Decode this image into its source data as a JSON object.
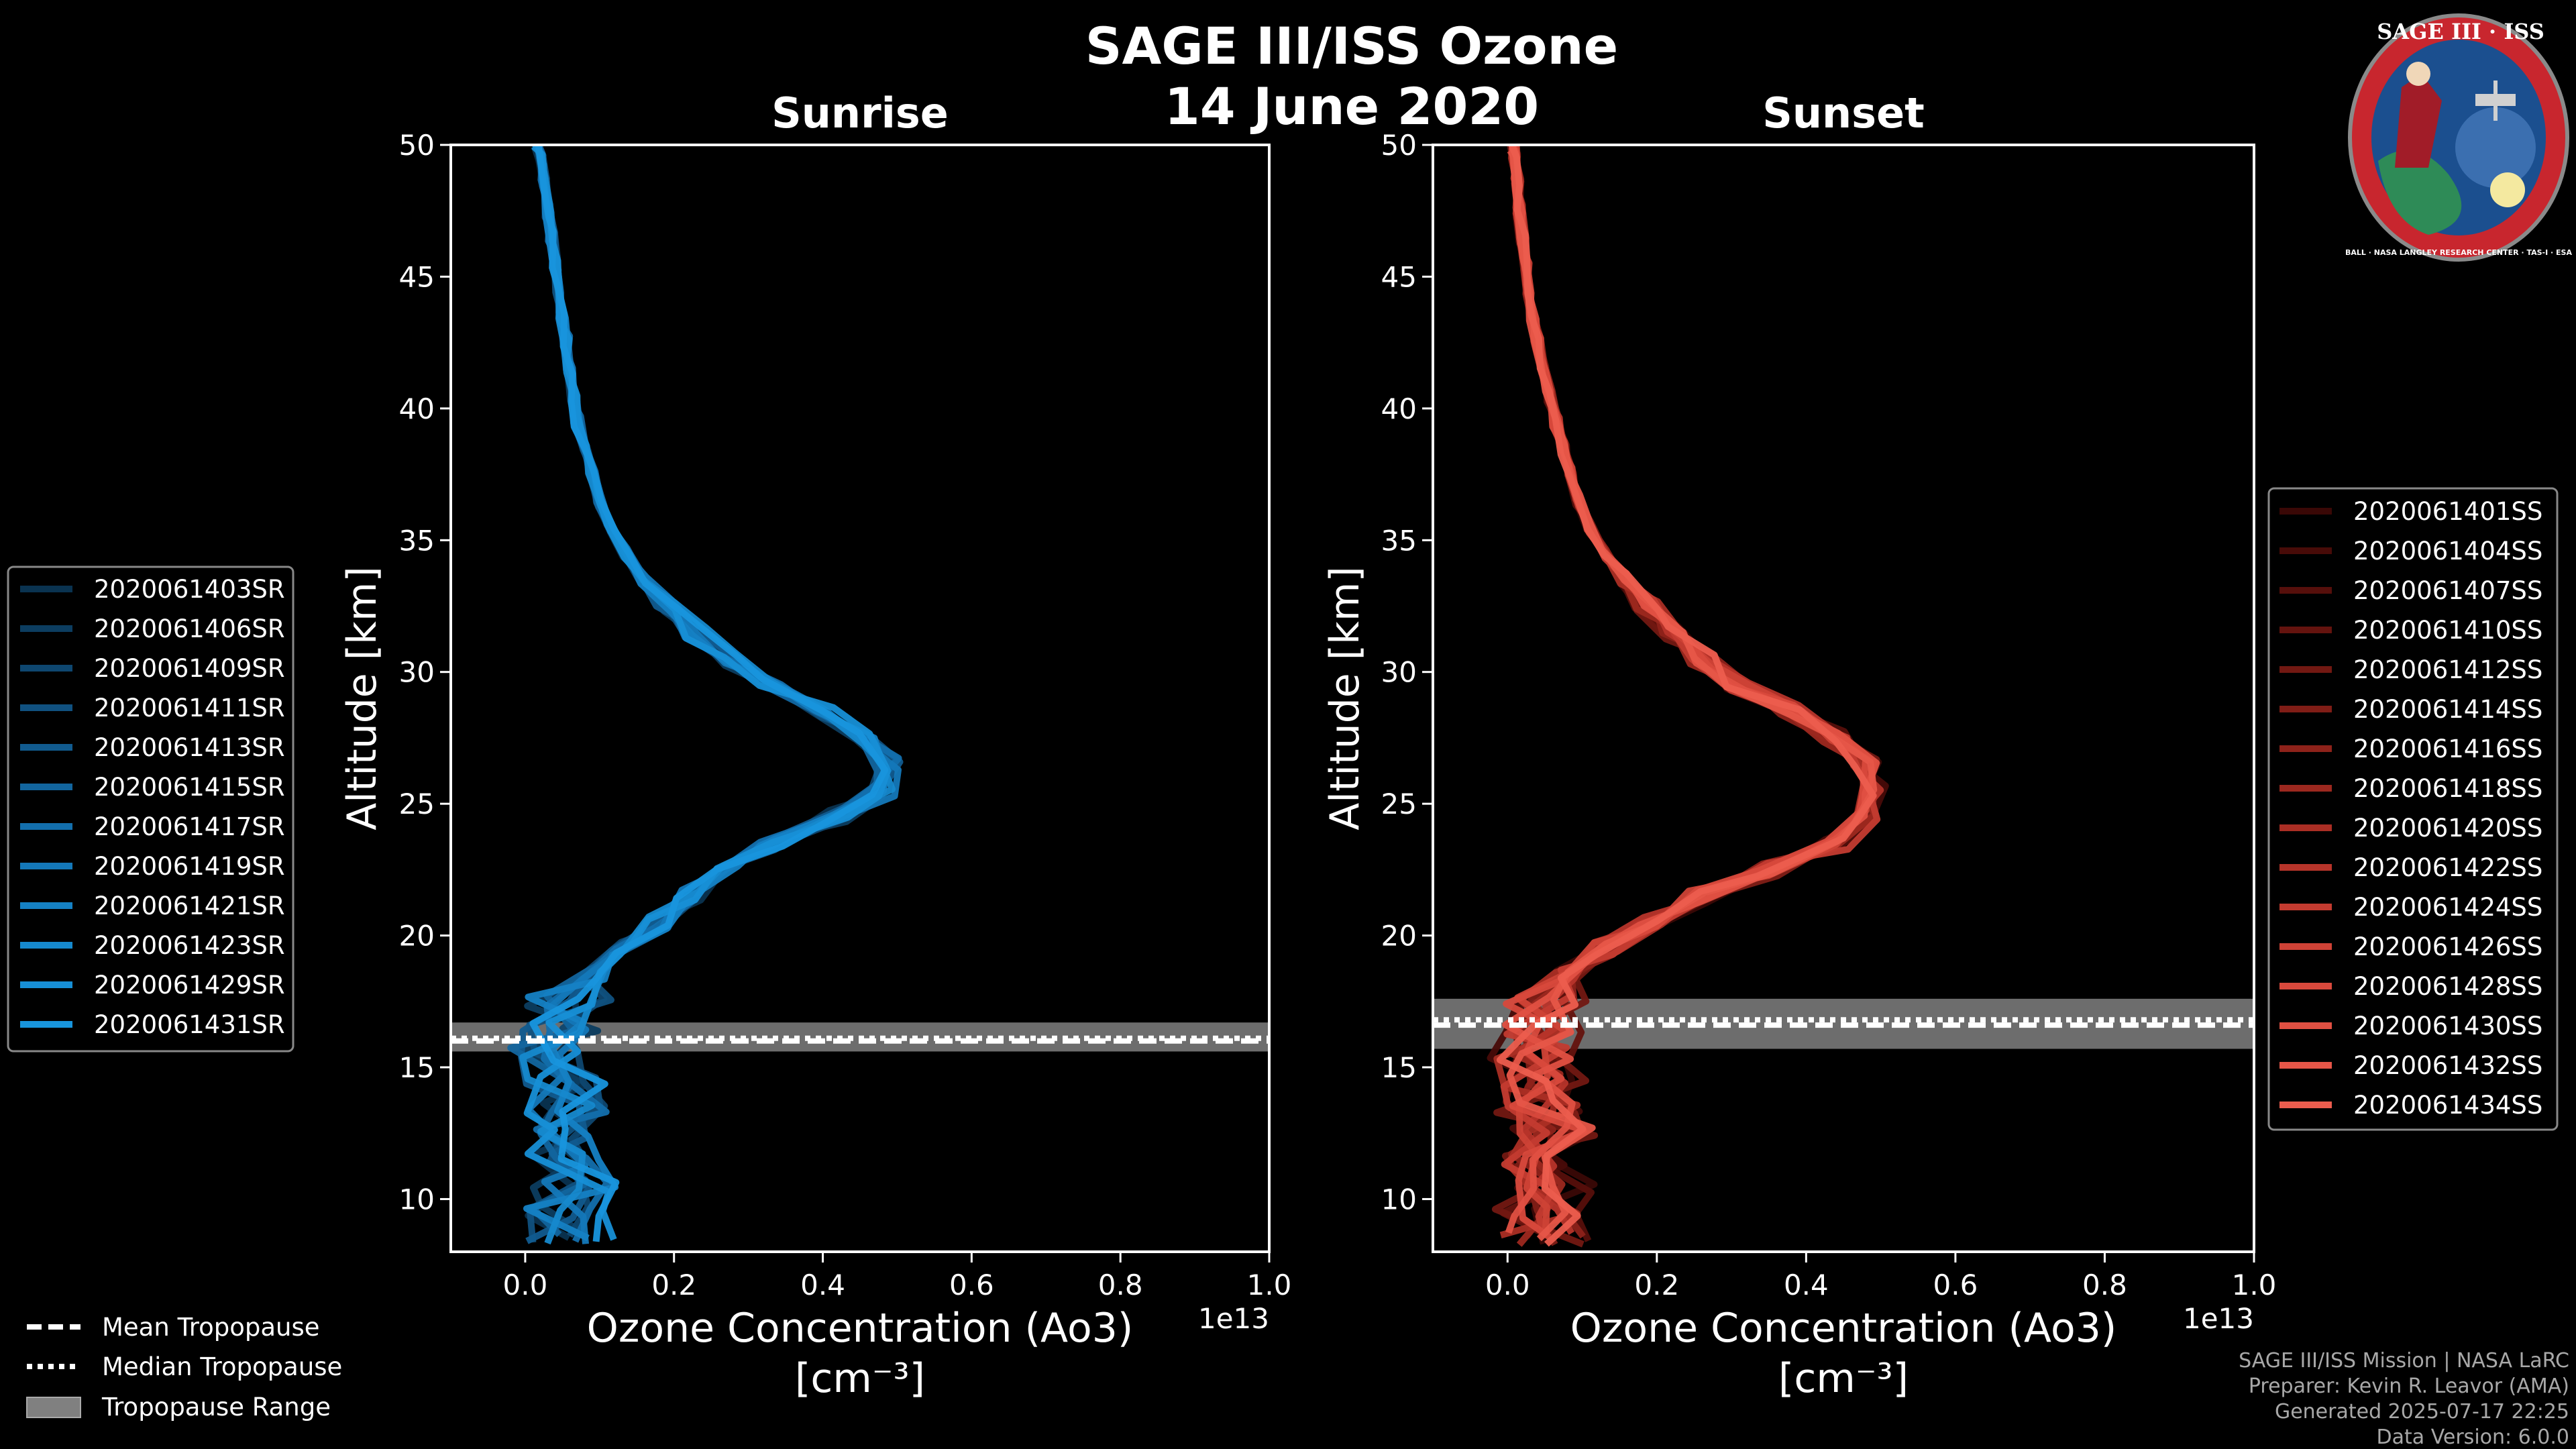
{
  "figure": {
    "title": "SAGE III/ISS Ozone",
    "subtitle": "14 June 2020",
    "logo": {
      "text_top": "SAGE III · ISS",
      "text_bottom": "BALL · NASA LANGLEY RESEARCH CENTER · TAS-I · ESA",
      "icon": "sage-iii-iss-mission-patch"
    },
    "credits": [
      "SAGE III/ISS Mission | NASA LaRC",
      "Preparer: Kevin R. Leavor (AMA)",
      "Generated 2025-07-17 22:25",
      "Data Version: 6.0.0"
    ],
    "tropopause_legend": [
      {
        "label": "Mean Tropopause",
        "style": "dashed"
      },
      {
        "label": "Median Tropopause",
        "style": "dotted"
      },
      {
        "label": "Tropopause Range",
        "style": "band"
      }
    ],
    "colors": {
      "background": "#000000",
      "sunrise": "#1a8fd6",
      "sunset": "#e85a4a",
      "band": "#808080"
    }
  },
  "chart_data": [
    {
      "type": "line",
      "title": "Sunrise",
      "xlabel": "Ozone Concentration (Ao3)",
      "xlabel_unit": "[cm⁻³]",
      "ylabel": "Altitude [km]",
      "xlim": [
        -0.1,
        1.0
      ],
      "ylim": [
        8,
        50
      ],
      "x_scale_label": "1e13",
      "xticks": [
        "0.0",
        "0.2",
        "0.4",
        "0.6",
        "0.8",
        "1.0"
      ],
      "yticks": [
        "10",
        "15",
        "20",
        "25",
        "30",
        "35",
        "40",
        "45",
        "50"
      ],
      "profile_altitude_km": [
        8.5,
        9.5,
        10.5,
        11.5,
        12.5,
        13.5,
        14.5,
        15.5,
        16.5,
        17.5,
        18.5,
        19.5,
        20.5,
        21.5,
        22.5,
        23.5,
        24.5,
        25.5,
        26.5,
        27.5,
        28.5,
        29.5,
        30.5,
        31.5,
        32.5,
        33.5,
        34.5,
        35.5,
        36.5,
        37.5,
        38.5,
        39.5,
        40.5,
        41.5,
        42.5,
        43.5,
        44.5,
        45.5,
        46.5,
        47.5,
        48.5,
        49.5,
        50
      ],
      "mean_profile_x": [
        0.06,
        0.05,
        0.07,
        0.06,
        0.07,
        0.05,
        0.06,
        0.04,
        0.05,
        0.06,
        0.09,
        0.13,
        0.18,
        0.22,
        0.27,
        0.33,
        0.42,
        0.48,
        0.49,
        0.46,
        0.4,
        0.33,
        0.28,
        0.23,
        0.19,
        0.16,
        0.135,
        0.115,
        0.1,
        0.09,
        0.08,
        0.07,
        0.065,
        0.06,
        0.055,
        0.05,
        0.045,
        0.04,
        0.035,
        0.03,
        0.025,
        0.02,
        0.015
      ],
      "tropopause": {
        "mean_km": 16.0,
        "median_km": 16.1,
        "range_km": [
          15.6,
          16.7
        ]
      },
      "series": [
        {
          "name": "2020061403SR",
          "color": "#0a3350"
        },
        {
          "name": "2020061406SR",
          "color": "#0c3d60"
        },
        {
          "name": "2020061409SR",
          "color": "#0e4770"
        },
        {
          "name": "2020061411SR",
          "color": "#105180"
        },
        {
          "name": "2020061413SR",
          "color": "#115b8f"
        },
        {
          "name": "2020061415SR",
          "color": "#12659e"
        },
        {
          "name": "2020061417SR",
          "color": "#136fad"
        },
        {
          "name": "2020061419SR",
          "color": "#1478b9"
        },
        {
          "name": "2020061421SR",
          "color": "#1581c4"
        },
        {
          "name": "2020061423SR",
          "color": "#1689ce"
        },
        {
          "name": "2020061429SR",
          "color": "#178fd6"
        },
        {
          "name": "2020061431SR",
          "color": "#1895dd"
        }
      ]
    },
    {
      "type": "line",
      "title": "Sunset",
      "xlabel": "Ozone Concentration (Ao3)",
      "xlabel_unit": "[cm⁻³]",
      "ylabel": "Altitude [km]",
      "xlim": [
        -0.1,
        1.0
      ],
      "ylim": [
        8,
        50
      ],
      "x_scale_label": "1e13",
      "xticks": [
        "0.0",
        "0.2",
        "0.4",
        "0.6",
        "0.8",
        "1.0"
      ],
      "yticks": [
        "10",
        "15",
        "20",
        "25",
        "30",
        "35",
        "40",
        "45",
        "50"
      ],
      "profile_altitude_km": [
        8.5,
        9.5,
        10.5,
        11.5,
        12.5,
        13.5,
        14.5,
        15.5,
        16.5,
        17.5,
        18.5,
        19.5,
        20.5,
        21.5,
        22.5,
        23.5,
        24.5,
        25.5,
        26.5,
        27.5,
        28.5,
        29.5,
        30.5,
        31.5,
        32.5,
        33.5,
        34.5,
        35.5,
        36.5,
        37.5,
        38.5,
        39.5,
        40.5,
        41.5,
        42.5,
        43.5,
        44.5,
        45.5,
        46.5,
        47.5,
        48.5,
        49.5,
        50
      ],
      "mean_profile_x": [
        0.05,
        0.04,
        0.06,
        0.05,
        0.06,
        0.04,
        0.05,
        0.03,
        0.04,
        0.05,
        0.08,
        0.13,
        0.19,
        0.26,
        0.35,
        0.44,
        0.48,
        0.49,
        0.48,
        0.44,
        0.38,
        0.31,
        0.26,
        0.22,
        0.185,
        0.155,
        0.13,
        0.11,
        0.095,
        0.085,
        0.075,
        0.065,
        0.055,
        0.048,
        0.04,
        0.034,
        0.029,
        0.024,
        0.02,
        0.016,
        0.013,
        0.01,
        0.008
      ],
      "tropopause": {
        "mean_km": 16.6,
        "median_km": 16.8,
        "range_km": [
          15.7,
          17.6
        ]
      },
      "series": [
        {
          "name": "2020061401SS",
          "color": "#3a0806"
        },
        {
          "name": "2020061404SS",
          "color": "#480b08"
        },
        {
          "name": "2020061407SS",
          "color": "#560f0b"
        },
        {
          "name": "2020061410SS",
          "color": "#64130e"
        },
        {
          "name": "2020061412SS",
          "color": "#721812"
        },
        {
          "name": "2020061414SS",
          "color": "#801d16"
        },
        {
          "name": "2020061416SS",
          "color": "#8e221a"
        },
        {
          "name": "2020061418SS",
          "color": "#9c281f"
        },
        {
          "name": "2020061420SS",
          "color": "#aa2e24"
        },
        {
          "name": "2020061422SS",
          "color": "#b7342a"
        },
        {
          "name": "2020061424SS",
          "color": "#c33b30"
        },
        {
          "name": "2020061426SS",
          "color": "#ce4236"
        },
        {
          "name": "2020061428SS",
          "color": "#d8493c"
        },
        {
          "name": "2020061430SS",
          "color": "#e05042"
        },
        {
          "name": "2020061432SS",
          "color": "#e65648"
        },
        {
          "name": "2020061434SS",
          "color": "#ec5d4e"
        }
      ]
    }
  ]
}
